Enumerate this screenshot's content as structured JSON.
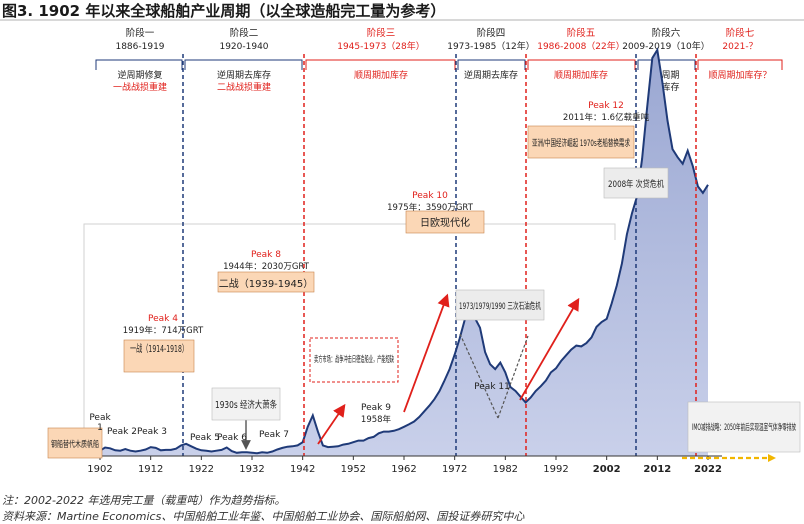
{
  "title": "图3. 1902 年以来全球船舶产业周期（以全球造船完工量为参考）",
  "chart_data": {
    "type": "area",
    "x_ticks": [
      "1902",
      "1912",
      "1922",
      "1932",
      "1942",
      "1952",
      "1962",
      "1972",
      "1982",
      "1992",
      "2002",
      "2012",
      "2022"
    ],
    "x_range": [
      1900,
      2024
    ],
    "series": [
      {
        "x": [
          1902,
          1903,
          1904,
          1905,
          1906,
          1907,
          1908,
          1909,
          1910,
          1911,
          1912,
          1913,
          1914,
          1915,
          1916,
          1917,
          1918,
          1919,
          1920,
          1921,
          1922,
          1923,
          1924,
          1925,
          1926,
          1927,
          1928,
          1929,
          1930,
          1931,
          1932,
          1933,
          1934,
          1935,
          1936,
          1937,
          1938,
          1939,
          1940,
          1941,
          1942,
          1943,
          1944,
          1945,
          1946,
          1947,
          1948,
          1949,
          1950,
          1951,
          1952,
          1953,
          1954,
          1955,
          1956,
          1957,
          1958,
          1959,
          1960,
          1961,
          1962,
          1963,
          1964,
          1965,
          1966,
          1967,
          1968,
          1969,
          1970,
          1971,
          1972,
          1973,
          1974,
          1975,
          1976,
          1977,
          1978,
          1979,
          1980,
          1981,
          1982,
          1983,
          1984,
          1985,
          1986,
          1987,
          1988,
          1989,
          1990,
          1991,
          1992,
          1993,
          1994,
          1995,
          1996,
          1997,
          1998,
          1999,
          2000,
          2001,
          2002,
          2003,
          2004,
          2005,
          2006,
          2007,
          2008,
          2009,
          2010,
          2011,
          2012,
          2013,
          2014,
          2015,
          2016,
          2017,
          2018,
          2019,
          2020,
          2021,
          2022
        ],
        "y": [
          13,
          21,
          19,
          14,
          13,
          17,
          13,
          11,
          13,
          16,
          22,
          20,
          14,
          15,
          15,
          18,
          26,
          30,
          24,
          18,
          14,
          13,
          11,
          13,
          15,
          21,
          12,
          8,
          9,
          9,
          8,
          7,
          9,
          8,
          11,
          16,
          20,
          23,
          24,
          26,
          34,
          72,
          100,
          60,
          26,
          22,
          23,
          24,
          28,
          30,
          34,
          38,
          38,
          44,
          47,
          56,
          60,
          60,
          62,
          66,
          72,
          78,
          85,
          96,
          110,
          124,
          140,
          160,
          186,
          214,
          250,
          290,
          336,
          356,
          340,
          316,
          256,
          226,
          214,
          230,
          206,
          170,
          160,
          146,
          132,
          144,
          160,
          172,
          186,
          206,
          216,
          234,
          248,
          262,
          272,
          270,
          278,
          292,
          318,
          330,
          338,
          376,
          420,
          474,
          546,
          598,
          640,
          732,
          860,
          980,
          1000,
          920,
          826,
          756,
          736,
          720,
          752,
          714,
          664,
          648,
          668
        ]
      }
    ],
    "phases": [
      {
        "name": "阶段一",
        "years": "1886-1919",
        "desc": [
          "逆周期修复"
        ],
        "desc_red": [
          "一战战损重建"
        ]
      },
      {
        "name": "阶段二",
        "years": "1920-1940",
        "desc": [
          "逆周期去库存"
        ],
        "desc_red": [
          "二战战损重建"
        ]
      },
      {
        "name": "阶段三",
        "years": "1945-1973（28年）",
        "desc": [],
        "desc_red": [
          "顺周期加库存"
        ]
      },
      {
        "name": "阶段四",
        "years": "1973-1985（12年）",
        "desc": [
          "逆周期去库存"
        ],
        "desc_red": []
      },
      {
        "name": "阶段五",
        "years": "1986-2008（22年）",
        "desc": [],
        "desc_red": [
          "顺周期加库存"
        ]
      },
      {
        "name": "阶段六",
        "years": "2009-2019（10年）",
        "desc": [
          "逆周期",
          "去库存"
        ],
        "desc_red": []
      },
      {
        "name": "阶段七",
        "years": "2021-？",
        "desc": [],
        "desc_red": [
          "顺周期加库存？"
        ]
      }
    ],
    "peaks": [
      {
        "label": "Peak 1",
        "year": 1902
      },
      {
        "label": "Peak 2",
        "year": 1908
      },
      {
        "label": "Peak 3",
        "year": 1914
      },
      {
        "label": "Peak 4",
        "year": 1919,
        "note": "1919年：714万GRT"
      },
      {
        "label": "Peak 5",
        "year": 1926
      },
      {
        "label": "Peak 6",
        "year": 1929
      },
      {
        "label": "Peak 7",
        "year": 1938
      },
      {
        "label": "Peak 8",
        "year": 1944,
        "note": "1944年：2030万GRT"
      },
      {
        "label": "Peak 9",
        "year": 1958,
        "note": "1958年"
      },
      {
        "label": "Peak 10",
        "year": 1975,
        "note": "1975年：3590万GRT"
      },
      {
        "label": "Peak 11",
        "year": 1982
      },
      {
        "label": "Peak 12",
        "year": 2011,
        "note": "2011年：1.6亿载重吨"
      }
    ],
    "annotations": {
      "ww1": "一战（1914-1918）",
      "ww2": "二战（1939-1945）",
      "depression": "1930s 经济大萧条",
      "japan_europe": "日欧现代化",
      "oil_crisis": "1973/1979/1990 三次石油危机",
      "seller_market": "卖方市场：战争冲击日德造船业，产能短缺",
      "asia_rise": "亚洲/中国经济崛起 1970s老船替换需求",
      "crisis_2008": "2008年 次贷危机",
      "steel_ship": "钢船替代木质帆船",
      "imo": "IMO减排战略：2050年前后实现温室气体净零排放"
    }
  },
  "notes": [
    "注：2002-2022 年选用完工量（载重吨）作为趋势指标。",
    "资料来源：Martine Economics、中国船舶工业年鉴、中国船舶工业协会、国际船舶网、国投证券研究中心"
  ]
}
